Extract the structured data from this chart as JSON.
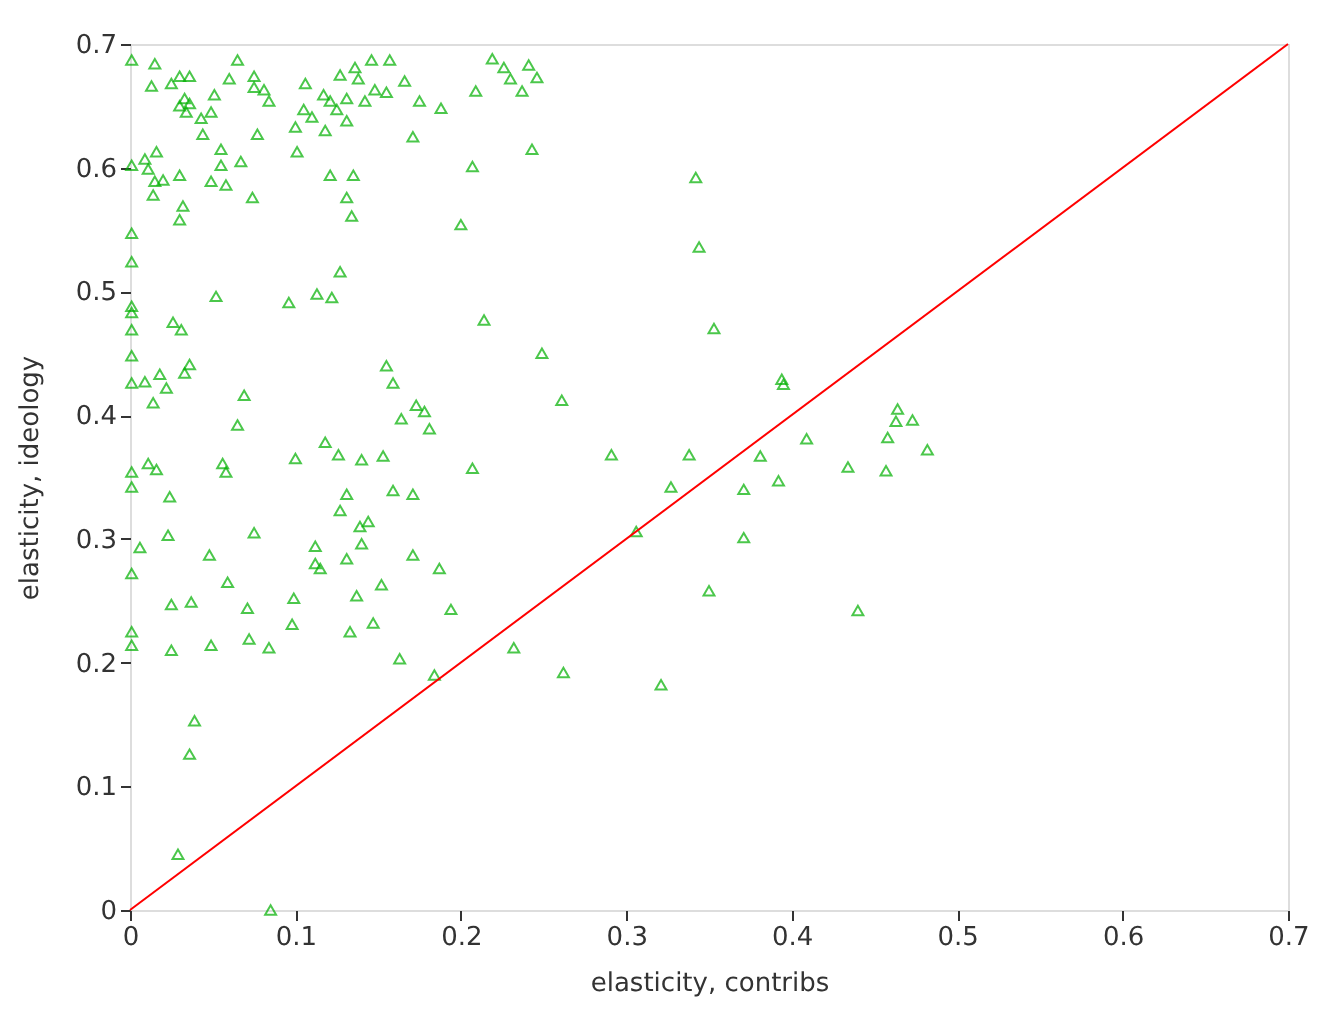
{
  "chart_data": {
    "type": "scatter",
    "xlabel": "elasticity, contribs",
    "ylabel": "elasticity, ideology",
    "xlim": [
      0,
      0.7
    ],
    "ylim": [
      0,
      0.7
    ],
    "xticks": [
      0,
      0.1,
      0.2,
      0.3,
      0.4,
      0.5,
      0.6,
      0.7
    ],
    "yticks": [
      0,
      0.1,
      0.2,
      0.3,
      0.4,
      0.5,
      0.6,
      0.7
    ],
    "grid": false,
    "series": [
      {
        "color": "#00b000",
        "marker": "triangle",
        "x": [
          0.001,
          0.015,
          0.013,
          0.065,
          0.06,
          0.025,
          0.03,
          0.036,
          0.033,
          0.03,
          0.036,
          0.034,
          0.051,
          0.049,
          0.043,
          0.044,
          0.075,
          0.075,
          0.081,
          0.084,
          0.077,
          0.106,
          0.1,
          0.105,
          0.11,
          0.118,
          0.101,
          0.117,
          0.121,
          0.127,
          0.136,
          0.138,
          0.131,
          0.125,
          0.131,
          0.146,
          0.157,
          0.148,
          0.155,
          0.142,
          0.166,
          0.175,
          0.188,
          0.171,
          0.219,
          0.226,
          0.241,
          0.23,
          0.246,
          0.237,
          0.209,
          0.243,
          0.001,
          0.016,
          0.009,
          0.011,
          0.03,
          0.02,
          0.015,
          0.014,
          0.055,
          0.055,
          0.067,
          0.049,
          0.058,
          0.074,
          0.032,
          0.03,
          0.121,
          0.135,
          0.131,
          0.134,
          0.207,
          0.2,
          0.001,
          0.001,
          0.127,
          0.052,
          0.096,
          0.113,
          0.122,
          0.214,
          0.001,
          0.001,
          0.001,
          0.026,
          0.031,
          0.249,
          0.001,
          0.018,
          0.036,
          0.033,
          0.009,
          0.001,
          0.022,
          0.014,
          0.069,
          0.065,
          0.155,
          0.159,
          0.173,
          0.178,
          0.164,
          0.181,
          0.118,
          0.126,
          0.14,
          0.153,
          0.1,
          0.056,
          0.058,
          0.207,
          0.011,
          0.016,
          0.001,
          0.001,
          0.024,
          0.131,
          0.127,
          0.159,
          0.171,
          0.144,
          0.139,
          0.023,
          0.075,
          0.006,
          0.112,
          0.14,
          0.048,
          0.131,
          0.112,
          0.115,
          0.171,
          0.187,
          0.001,
          0.059,
          0.152,
          0.137,
          0.099,
          0.037,
          0.025,
          0.071,
          0.194,
          0.001,
          0.001,
          0.025,
          0.049,
          0.072,
          0.084,
          0.098,
          0.133,
          0.147,
          0.163,
          0.184,
          0.232,
          0.039,
          0.036,
          0.029,
          0.085,
          0.353,
          0.394,
          0.395,
          0.261,
          0.464,
          0.473,
          0.463,
          0.458,
          0.409,
          0.482,
          0.291,
          0.338,
          0.381,
          0.434,
          0.457,
          0.327,
          0.371,
          0.392,
          0.306,
          0.371,
          0.35,
          0.44,
          0.262,
          0.321,
          0.342,
          0.344
        ],
        "values": [
          0.687,
          0.684,
          0.666,
          0.687,
          0.672,
          0.668,
          0.674,
          0.674,
          0.656,
          0.65,
          0.652,
          0.645,
          0.659,
          0.645,
          0.64,
          0.627,
          0.674,
          0.665,
          0.663,
          0.654,
          0.627,
          0.668,
          0.633,
          0.647,
          0.641,
          0.63,
          0.613,
          0.659,
          0.654,
          0.675,
          0.681,
          0.672,
          0.656,
          0.647,
          0.638,
          0.687,
          0.687,
          0.663,
          0.661,
          0.654,
          0.67,
          0.654,
          0.648,
          0.625,
          0.688,
          0.681,
          0.683,
          0.672,
          0.673,
          0.662,
          0.662,
          0.615,
          0.602,
          0.613,
          0.607,
          0.599,
          0.594,
          0.59,
          0.589,
          0.578,
          0.615,
          0.602,
          0.605,
          0.589,
          0.586,
          0.576,
          0.569,
          0.558,
          0.594,
          0.594,
          0.576,
          0.561,
          0.601,
          0.554,
          0.547,
          0.524,
          0.516,
          0.496,
          0.491,
          0.498,
          0.495,
          0.477,
          0.488,
          0.483,
          0.469,
          0.475,
          0.469,
          0.45,
          0.448,
          0.433,
          0.441,
          0.434,
          0.427,
          0.426,
          0.422,
          0.41,
          0.416,
          0.392,
          0.44,
          0.426,
          0.408,
          0.403,
          0.397,
          0.389,
          0.378,
          0.368,
          0.364,
          0.367,
          0.365,
          0.361,
          0.354,
          0.357,
          0.361,
          0.356,
          0.354,
          0.342,
          0.334,
          0.336,
          0.323,
          0.339,
          0.336,
          0.314,
          0.31,
          0.303,
          0.305,
          0.293,
          0.294,
          0.296,
          0.287,
          0.284,
          0.28,
          0.276,
          0.287,
          0.276,
          0.272,
          0.265,
          0.263,
          0.254,
          0.252,
          0.249,
          0.247,
          0.244,
          0.243,
          0.225,
          0.214,
          0.21,
          0.214,
          0.219,
          0.212,
          0.231,
          0.225,
          0.232,
          0.203,
          0.19,
          0.212,
          0.153,
          0.126,
          0.045,
          0.0,
          0.47,
          0.429,
          0.425,
          0.412,
          0.405,
          0.396,
          0.395,
          0.382,
          0.381,
          0.372,
          0.368,
          0.368,
          0.367,
          0.358,
          0.355,
          0.342,
          0.34,
          0.347,
          0.306,
          0.301,
          0.258,
          0.242,
          0.192,
          0.182,
          0.592,
          0.536
        ]
      },
      {
        "type": "line",
        "color": "#ff0000",
        "line_style": "solid",
        "marker": "none",
        "x": [
          0,
          0.7
        ],
        "values": [
          0,
          0.7
        ]
      }
    ]
  }
}
